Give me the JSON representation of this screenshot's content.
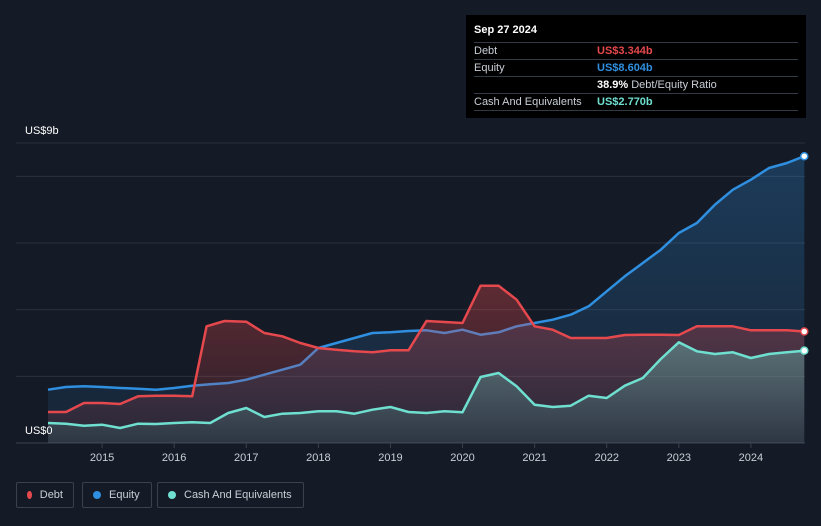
{
  "tooltip": {
    "date": "Sep 27 2024",
    "rows": [
      {
        "label": "Debt",
        "value": "US$3.344b",
        "color": "#e5484d"
      },
      {
        "label": "Equity",
        "value": "US$8.604b",
        "color": "#2f8fe0"
      },
      {
        "label": "",
        "value": "38.9%",
        "extra": "Debt/Equity Ratio",
        "color": "#ffffff"
      },
      {
        "label": "Cash And Equivalents",
        "value": "US$2.770b",
        "color": "#6fe0d0"
      }
    ]
  },
  "legend": [
    {
      "label": "Debt",
      "color": "#e5484d"
    },
    {
      "label": "Equity",
      "color": "#2f8fe0"
    },
    {
      "label": "Cash And Equivalents",
      "color": "#6fe0d0"
    }
  ],
  "chart_data": {
    "type": "area",
    "title": "",
    "ytop_label": "US$9b",
    "ybottom_label": "US$0",
    "ylim": [
      0,
      9
    ],
    "xlim": [
      2014.25,
      2024.75
    ],
    "xticks": [
      2015,
      2016,
      2017,
      2018,
      2019,
      2020,
      2021,
      2022,
      2023,
      2024
    ],
    "grid": true,
    "series": [
      {
        "name": "Debt",
        "color": "#e5484d",
        "points": [
          [
            2014.25,
            0.93
          ],
          [
            2014.5,
            0.93
          ],
          [
            2014.75,
            1.2
          ],
          [
            2015.0,
            1.2
          ],
          [
            2015.25,
            1.17
          ],
          [
            2015.5,
            1.4
          ],
          [
            2015.75,
            1.42
          ],
          [
            2016.0,
            1.42
          ],
          [
            2016.25,
            1.4
          ],
          [
            2016.45,
            3.5
          ],
          [
            2016.7,
            3.66
          ],
          [
            2017.0,
            3.64
          ],
          [
            2017.25,
            3.3
          ],
          [
            2017.5,
            3.2
          ],
          [
            2017.75,
            3.0
          ],
          [
            2018.0,
            2.85
          ],
          [
            2018.25,
            2.8
          ],
          [
            2018.5,
            2.75
          ],
          [
            2018.75,
            2.72
          ],
          [
            2019.0,
            2.78
          ],
          [
            2019.25,
            2.78
          ],
          [
            2019.5,
            3.66
          ],
          [
            2019.75,
            3.63
          ],
          [
            2020.0,
            3.6
          ],
          [
            2020.25,
            4.72
          ],
          [
            2020.5,
            4.72
          ],
          [
            2020.75,
            4.3
          ],
          [
            2021.0,
            3.5
          ],
          [
            2021.25,
            3.4
          ],
          [
            2021.5,
            3.15
          ],
          [
            2021.75,
            3.15
          ],
          [
            2022.0,
            3.15
          ],
          [
            2022.25,
            3.24
          ],
          [
            2022.5,
            3.25
          ],
          [
            2022.75,
            3.25
          ],
          [
            2023.0,
            3.24
          ],
          [
            2023.25,
            3.5
          ],
          [
            2023.5,
            3.5
          ],
          [
            2023.75,
            3.5
          ],
          [
            2024.0,
            3.38
          ],
          [
            2024.25,
            3.38
          ],
          [
            2024.5,
            3.38
          ],
          [
            2024.74,
            3.344
          ]
        ]
      },
      {
        "name": "Equity",
        "color": "#2f8fe0",
        "points": [
          [
            2014.25,
            1.6
          ],
          [
            2014.5,
            1.68
          ],
          [
            2014.75,
            1.7
          ],
          [
            2015.0,
            1.68
          ],
          [
            2015.25,
            1.65
          ],
          [
            2015.5,
            1.63
          ],
          [
            2015.75,
            1.6
          ],
          [
            2016.0,
            1.65
          ],
          [
            2016.25,
            1.72
          ],
          [
            2016.5,
            1.76
          ],
          [
            2016.75,
            1.8
          ],
          [
            2017.0,
            1.9
          ],
          [
            2017.25,
            2.05
          ],
          [
            2017.5,
            2.2
          ],
          [
            2017.75,
            2.35
          ],
          [
            2018.0,
            2.85
          ],
          [
            2018.25,
            3.0
          ],
          [
            2018.5,
            3.15
          ],
          [
            2018.75,
            3.3
          ],
          [
            2019.0,
            3.32
          ],
          [
            2019.25,
            3.36
          ],
          [
            2019.5,
            3.38
          ],
          [
            2019.75,
            3.3
          ],
          [
            2020.0,
            3.4
          ],
          [
            2020.25,
            3.25
          ],
          [
            2020.5,
            3.32
          ],
          [
            2020.75,
            3.5
          ],
          [
            2021.0,
            3.6
          ],
          [
            2021.25,
            3.7
          ],
          [
            2021.5,
            3.85
          ],
          [
            2021.75,
            4.1
          ],
          [
            2022.0,
            4.55
          ],
          [
            2022.25,
            5.0
          ],
          [
            2022.5,
            5.4
          ],
          [
            2022.75,
            5.8
          ],
          [
            2023.0,
            6.3
          ],
          [
            2023.25,
            6.6
          ],
          [
            2023.5,
            7.15
          ],
          [
            2023.75,
            7.6
          ],
          [
            2024.0,
            7.9
          ],
          [
            2024.25,
            8.25
          ],
          [
            2024.5,
            8.4
          ],
          [
            2024.74,
            8.604
          ]
        ]
      },
      {
        "name": "Cash And Equivalents",
        "color": "#6fe0d0",
        "points": [
          [
            2014.25,
            0.6
          ],
          [
            2014.5,
            0.58
          ],
          [
            2014.75,
            0.52
          ],
          [
            2015.0,
            0.55
          ],
          [
            2015.25,
            0.45
          ],
          [
            2015.5,
            0.58
          ],
          [
            2015.75,
            0.57
          ],
          [
            2016.0,
            0.6
          ],
          [
            2016.25,
            0.62
          ],
          [
            2016.5,
            0.6
          ],
          [
            2016.75,
            0.9
          ],
          [
            2017.0,
            1.05
          ],
          [
            2017.25,
            0.78
          ],
          [
            2017.5,
            0.88
          ],
          [
            2017.75,
            0.9
          ],
          [
            2018.0,
            0.95
          ],
          [
            2018.25,
            0.95
          ],
          [
            2018.5,
            0.88
          ],
          [
            2018.75,
            1.0
          ],
          [
            2019.0,
            1.08
          ],
          [
            2019.25,
            0.93
          ],
          [
            2019.5,
            0.9
          ],
          [
            2019.75,
            0.95
          ],
          [
            2020.0,
            0.92
          ],
          [
            2020.25,
            1.98
          ],
          [
            2020.5,
            2.1
          ],
          [
            2020.75,
            1.7
          ],
          [
            2021.0,
            1.15
          ],
          [
            2021.25,
            1.08
          ],
          [
            2021.5,
            1.12
          ],
          [
            2021.75,
            1.42
          ],
          [
            2022.0,
            1.35
          ],
          [
            2022.25,
            1.72
          ],
          [
            2022.5,
            1.95
          ],
          [
            2022.75,
            2.52
          ],
          [
            2023.0,
            3.02
          ],
          [
            2023.25,
            2.75
          ],
          [
            2023.5,
            2.67
          ],
          [
            2023.75,
            2.72
          ],
          [
            2024.0,
            2.55
          ],
          [
            2024.25,
            2.67
          ],
          [
            2024.5,
            2.72
          ],
          [
            2024.74,
            2.77
          ]
        ]
      }
    ]
  }
}
